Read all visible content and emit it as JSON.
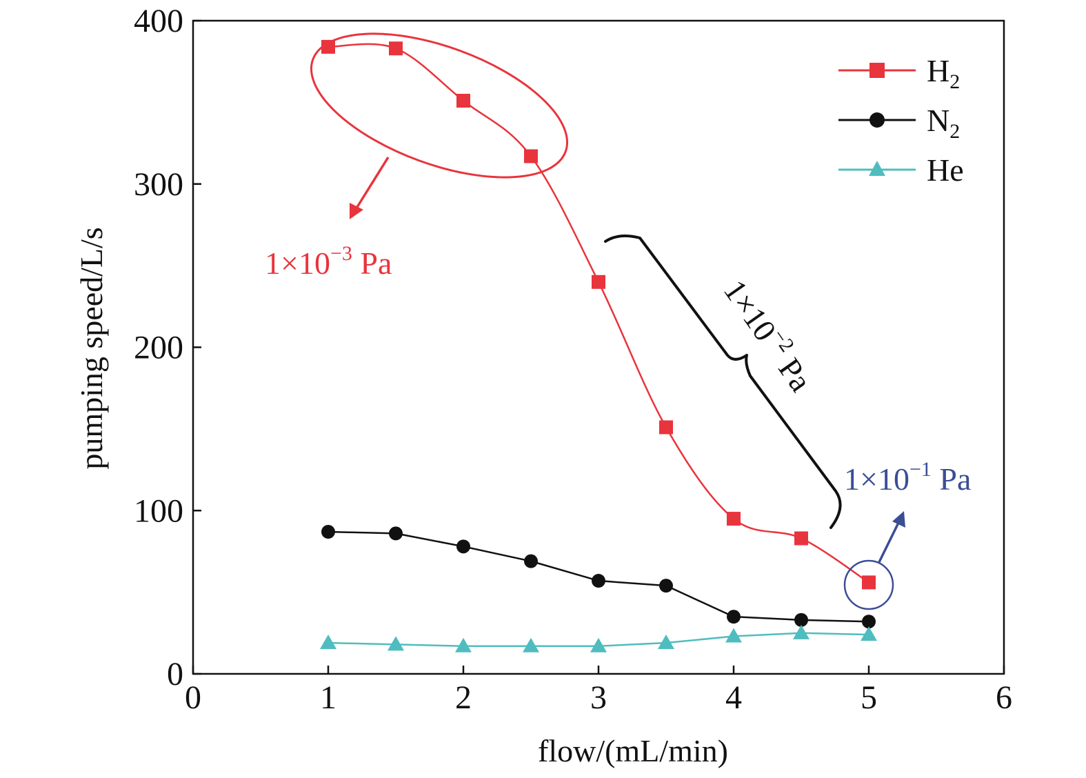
{
  "chart_data": {
    "type": "line",
    "xlabel": "flow/(mL/min)",
    "ylabel": "pumping speed/L/s",
    "xlim": [
      0,
      6
    ],
    "ylim": [
      0,
      400
    ],
    "xticks": [
      "0",
      "1",
      "2",
      "3",
      "4",
      "5",
      "6"
    ],
    "yticks": [
      "0",
      "100",
      "200",
      "300",
      "400"
    ],
    "grid": false,
    "legend_position": "top-right",
    "x": [
      1,
      1.5,
      2,
      2.5,
      3,
      3.5,
      4,
      4.5,
      5
    ],
    "series": [
      {
        "name": "H",
        "sub": "2",
        "color": "#e8343c",
        "marker": "square",
        "values": [
          384,
          383,
          351,
          317,
          240,
          151,
          95,
          83,
          56
        ]
      },
      {
        "name": "N",
        "sub": "2",
        "color": "#111111",
        "marker": "circle",
        "values": [
          87,
          86,
          78,
          69,
          57,
          54,
          35,
          33,
          32
        ]
      },
      {
        "name": "He",
        "sub": "",
        "color": "#4fbdbf",
        "marker": "triangle",
        "values": [
          19,
          18,
          17,
          17,
          17,
          19,
          23,
          25,
          24
        ]
      }
    ],
    "annotations": [
      {
        "text": "1×10",
        "sup": "−3",
        "unit": " Pa",
        "color": "#e8343c",
        "points_to": "H2 at flow 1–2.5"
      },
      {
        "text": "1×10",
        "sup": "−2",
        "unit": " Pa",
        "color": "#111111",
        "points_to": "H2 at flow 3–4.5"
      },
      {
        "text": "1×10",
        "sup": "−1",
        "unit": " Pa",
        "color": "#3b4d95",
        "points_to": "H2 at flow 5"
      }
    ]
  }
}
